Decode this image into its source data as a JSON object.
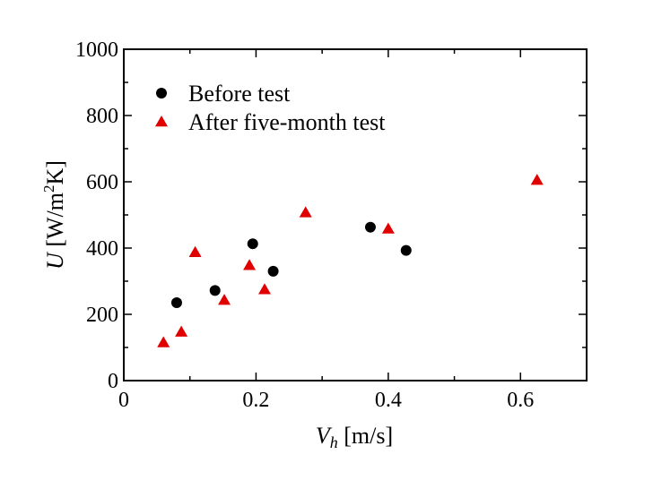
{
  "chart_data": {
    "type": "scatter",
    "xlabel": {
      "var": "V",
      "sub": "h",
      "unit": " [m/s]"
    },
    "ylabel": {
      "var": "U",
      "unit_a": " [W/m",
      "unit_sup": "2",
      "unit_b": "K]"
    },
    "xlim": [
      0,
      0.7
    ],
    "ylim": [
      0,
      1000
    ],
    "xticks": [
      0,
      0.2,
      0.4,
      0.6
    ],
    "xtick_labels": [
      "0",
      "0.2",
      "0.4",
      "0.6"
    ],
    "yticks": [
      0,
      200,
      400,
      600,
      800,
      1000
    ],
    "ytick_labels": [
      "0",
      "200",
      "400",
      "600",
      "800",
      "1000"
    ],
    "grid": false,
    "legend_position": "top-left",
    "series": [
      {
        "name": "Before test",
        "marker": "circle",
        "color": "#000000",
        "points": [
          [
            0.08,
            235
          ],
          [
            0.138,
            272
          ],
          [
            0.195,
            413
          ],
          [
            0.226,
            330
          ],
          [
            0.373,
            463
          ],
          [
            0.427,
            393
          ]
        ]
      },
      {
        "name": "After five-month test",
        "marker": "triangle",
        "color": "#e00000",
        "points": [
          [
            0.06,
            115
          ],
          [
            0.087,
            147
          ],
          [
            0.108,
            387
          ],
          [
            0.152,
            243
          ],
          [
            0.19,
            348
          ],
          [
            0.213,
            275
          ],
          [
            0.275,
            507
          ],
          [
            0.4,
            458
          ],
          [
            0.625,
            605
          ]
        ]
      }
    ]
  }
}
